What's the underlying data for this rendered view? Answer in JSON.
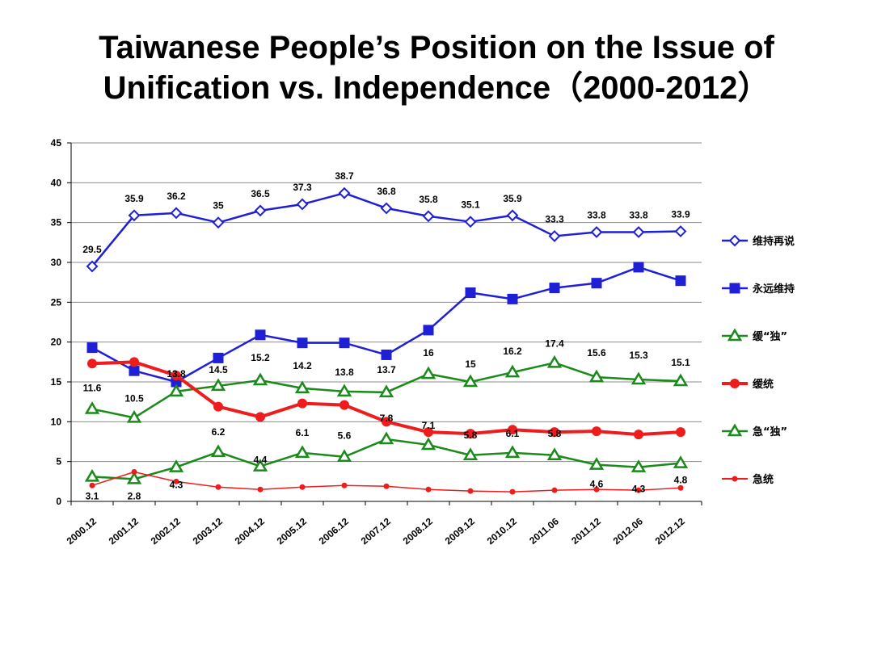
{
  "title_line1": "Taiwanese People’s Position on the Issue of",
  "title_line2": "Unification vs. Independence（2000-2012）",
  "chart_data": {
    "type": "line",
    "categories": [
      "2000.12",
      "2001.12",
      "2002.12",
      "2003.12",
      "2004.12",
      "2005.12",
      "2006.12",
      "2007.12",
      "2008.12",
      "2009.12",
      "2010.12",
      "2011.06",
      "2011.12",
      "2012.06",
      "2012.12"
    ],
    "ylim": [
      0,
      45
    ],
    "yticks": [
      0,
      5,
      10,
      15,
      20,
      25,
      30,
      35,
      40,
      45
    ],
    "grid": true,
    "legend_position": "right",
    "series": [
      {
        "name": "维持再说",
        "color": "#1f1fd6",
        "marker": "diamond-open",
        "line_width": 2.5,
        "labeled": true,
        "values": [
          29.5,
          35.9,
          36.2,
          35,
          36.5,
          37.3,
          38.7,
          36.8,
          35.8,
          35.1,
          35.9,
          33.3,
          33.8,
          33.8,
          33.9
        ],
        "labels": [
          "29.5",
          "35.9",
          "36.2",
          "35",
          "36.5",
          "37.3",
          "38.7",
          "36.8",
          "35.8",
          "35.1",
          "35.9",
          "33.3",
          "33.8",
          "33.8",
          "33.9"
        ]
      },
      {
        "name": "永远维持",
        "color": "#1f1fd6",
        "marker": "square",
        "line_width": 2.5,
        "labeled": false,
        "values": [
          19.3,
          16.4,
          15.0,
          18.0,
          20.9,
          19.9,
          19.9,
          18.4,
          21.5,
          26.2,
          25.4,
          26.8,
          27.4,
          29.4,
          27.7
        ]
      },
      {
        "name": "缓“独”",
        "color": "#1a8a1a",
        "marker": "triangle",
        "line_width": 2.5,
        "labeled": true,
        "values": [
          11.6,
          10.5,
          13.8,
          14.5,
          15.2,
          14.2,
          13.8,
          13.7,
          16,
          15,
          16.2,
          17.4,
          15.6,
          15.3,
          15.1
        ],
        "labels": [
          "11.6",
          "10.5",
          "13.8",
          "14.5",
          "15.2",
          "14.2",
          "13.8",
          "13.7",
          "16",
          "15",
          "16.2",
          "17.4",
          "15.6",
          "15.3",
          "15.1"
        ]
      },
      {
        "name": "缓统",
        "color": "#ee1c1c",
        "marker": "circle",
        "line_width": 4,
        "labeled": false,
        "values": [
          17.3,
          17.5,
          15.8,
          11.9,
          10.6,
          12.3,
          12.1,
          10.0,
          8.7,
          8.5,
          9.0,
          8.7,
          8.8,
          8.4,
          8.7
        ]
      },
      {
        "name": "急“独”",
        "color": "#1a8a1a",
        "marker": "triangle",
        "line_width": 2.5,
        "labeled": true,
        "values": [
          3.1,
          2.8,
          4.3,
          6.2,
          4.4,
          6.1,
          5.6,
          7.8,
          7.1,
          5.8,
          6.1,
          5.8,
          4.6,
          4.3,
          4.8
        ],
        "labels": [
          "3.1",
          "2.8",
          "4.3",
          "6.2",
          "4.4",
          "6.1",
          "5.6",
          "7.8",
          "7.1",
          "5.8",
          "6.1",
          "5.8",
          "4.6",
          "4.3",
          "4.8"
        ]
      },
      {
        "name": "急统",
        "color": "#ee1c1c",
        "marker": "small-circle",
        "line_width": 1.5,
        "labeled": false,
        "values": [
          2.0,
          3.7,
          2.5,
          1.8,
          1.5,
          1.8,
          2.0,
          1.9,
          1.5,
          1.3,
          1.2,
          1.4,
          1.5,
          1.4,
          1.7
        ]
      }
    ]
  }
}
